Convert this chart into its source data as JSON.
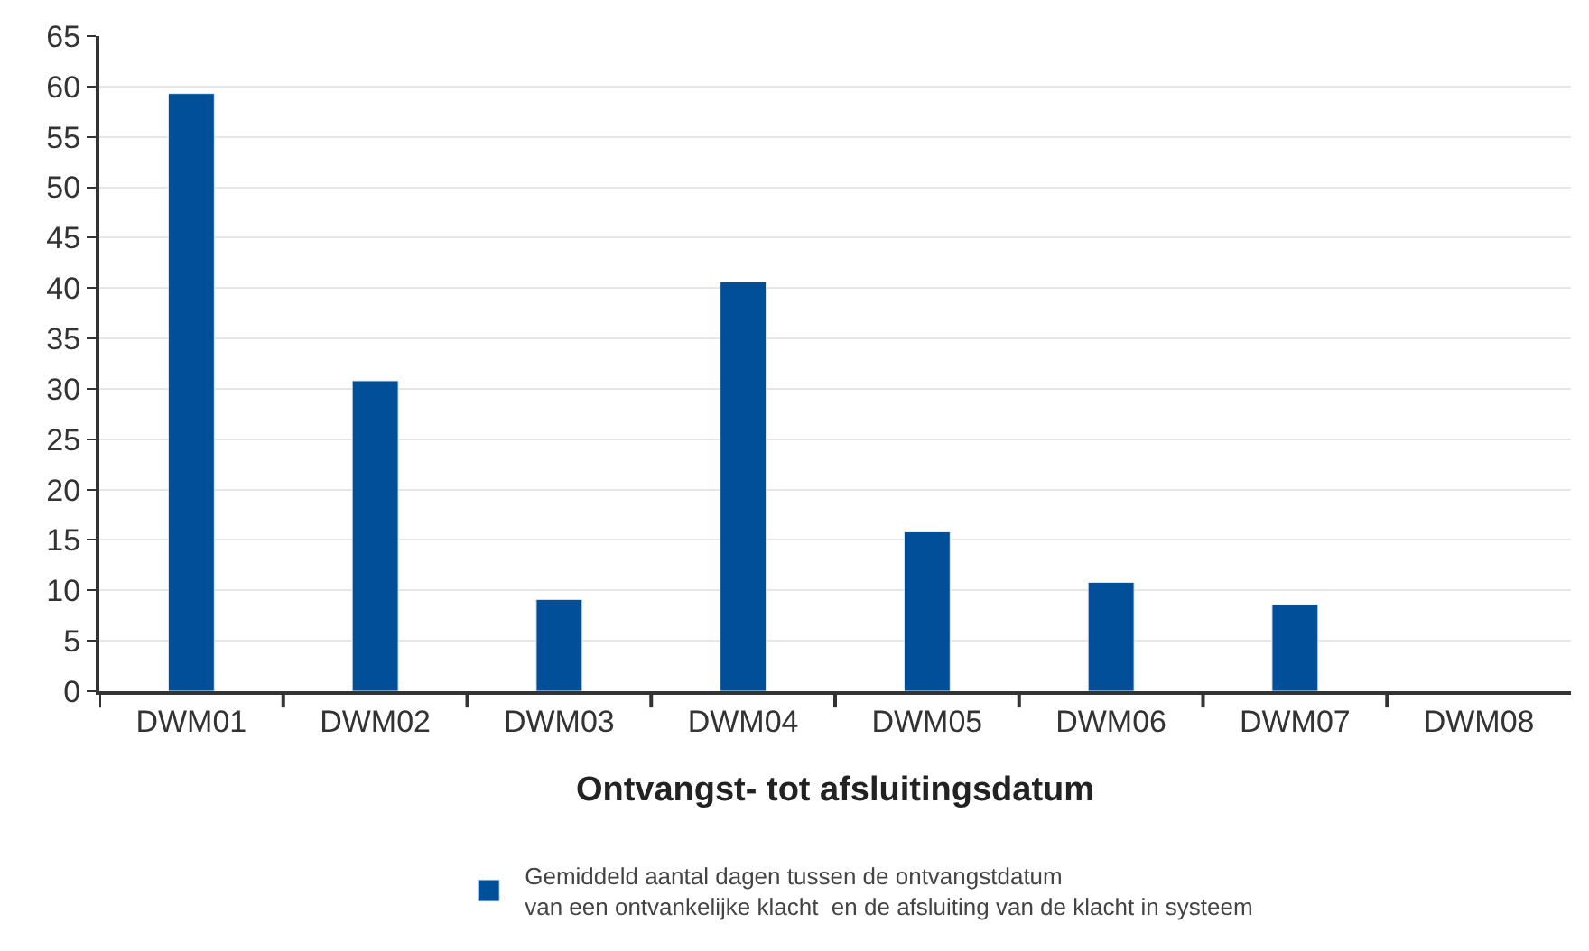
{
  "chart_data": {
    "type": "bar",
    "xlabel": "Ontvangst- tot afsluitingsdatum",
    "categories": [
      "DWM01",
      "DWM02",
      "DWM03",
      "DWM04",
      "DWM05",
      "DWM06",
      "DWM07",
      "DWM08"
    ],
    "series": [
      {
        "name": "Gemiddeld aantal dagen tussen de ontvangstdatum\nvan een ontvankelijke klacht  en de afsluiting van de klacht in systeem",
        "color": "#004f98",
        "values": [
          59.3,
          30.8,
          9.1,
          40.6,
          15.8,
          10.8,
          8.6,
          null
        ]
      }
    ],
    "ylim": [
      0,
      65
    ],
    "yticks": [
      0,
      5,
      10,
      15,
      20,
      25,
      30,
      35,
      40,
      45,
      50,
      55,
      60,
      65
    ],
    "grid": "y",
    "legend": "bottom"
  }
}
